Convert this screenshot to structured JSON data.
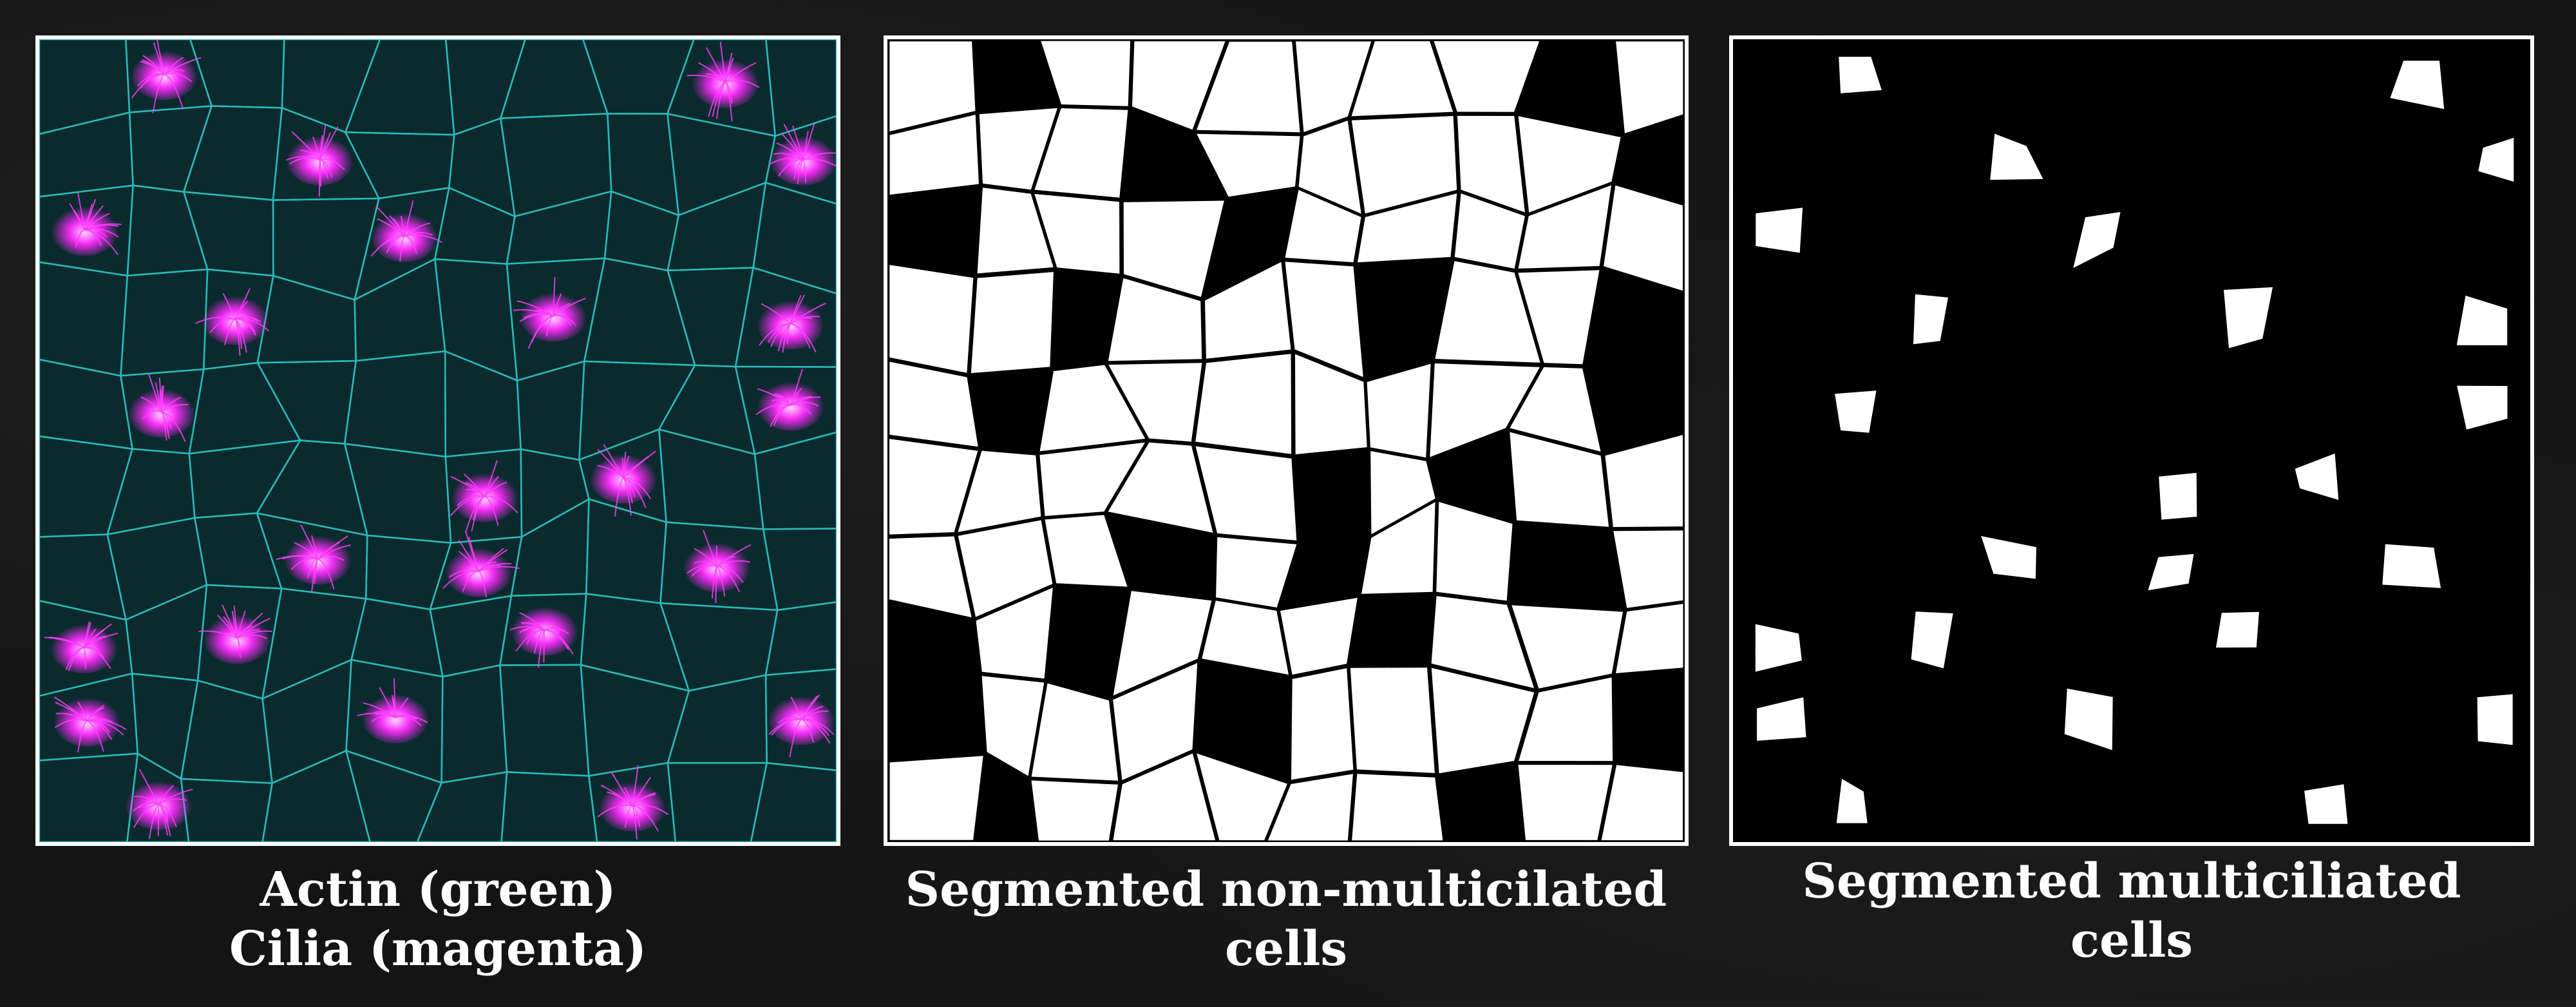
{
  "panels": [
    {
      "id": "actin",
      "caption_lines": [
        "Actin (green)",
        "Cilia (magenta)"
      ],
      "colors": {
        "actin": "#2fd3d0",
        "cilia": "#ff2bff",
        "background": "#0b2a2e"
      }
    },
    {
      "id": "non",
      "caption_lines": [
        "Segmented non-multicilated",
        "cells"
      ],
      "colors": {
        "cells": "#ffffff",
        "background": "#000000"
      }
    },
    {
      "id": "multi",
      "caption_lines": [
        "Segmented multiciliated",
        "cells"
      ],
      "colors": {
        "cells": "#ffffff",
        "background": "#000000"
      }
    }
  ]
}
